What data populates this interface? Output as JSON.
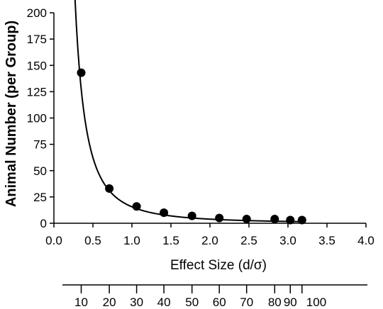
{
  "chart_data": {
    "type": "scatter",
    "xlabel": "Effect Size (d/σ)",
    "ylabel": "Animal Number (per Group)",
    "xlim": [
      0,
      4
    ],
    "ylim": [
      0,
      200
    ],
    "x_ticks": [
      "0.0",
      "0.5",
      "1.0",
      "1.5",
      "2.0",
      "2.5",
      "3.0",
      "3.5",
      "4.0"
    ],
    "y_ticks": [
      "0",
      "25",
      "50",
      "75",
      "100",
      "125",
      "150",
      "175",
      "200"
    ],
    "points": [
      {
        "x": 0.35,
        "y": 143
      },
      {
        "x": 0.71,
        "y": 33
      },
      {
        "x": 1.06,
        "y": 16
      },
      {
        "x": 1.41,
        "y": 10
      },
      {
        "x": 1.77,
        "y": 7
      },
      {
        "x": 2.12,
        "y": 5
      },
      {
        "x": 2.47,
        "y": 4
      },
      {
        "x": 2.83,
        "y": 4
      },
      {
        "x": 3.03,
        "y": 3
      },
      {
        "x": 3.18,
        "y": 3
      }
    ],
    "fit_curve": {
      "form": "y = a / x^2",
      "a": 15.6,
      "x_start": 0.27,
      "x_end": 3.18
    },
    "secondary_axis": {
      "labels": [
        "10",
        "20",
        "30",
        "40",
        "50",
        "60",
        "70",
        "80",
        "90",
        "100"
      ],
      "positions_in_x": [
        0.35,
        0.71,
        1.06,
        1.41,
        1.77,
        2.12,
        2.47,
        2.83,
        3.03,
        3.18
      ]
    }
  }
}
